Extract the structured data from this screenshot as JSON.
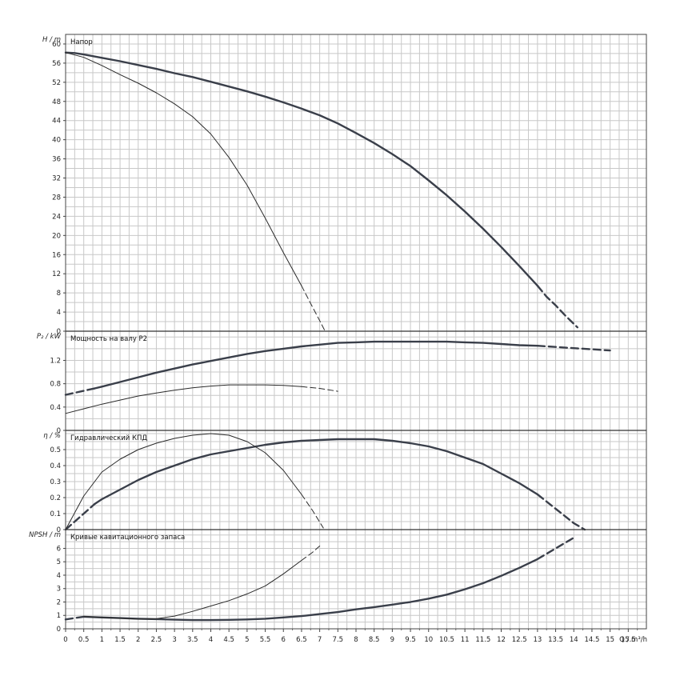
{
  "chart_data": {
    "type": "line",
    "x_axis": {
      "label": "Q / m³/h",
      "range": [
        0,
        16
      ],
      "ticks": [
        "0",
        "0.5",
        "1",
        "1.5",
        "2",
        "2.5",
        "3",
        "3.5",
        "4",
        "4.5",
        "5",
        "5.5",
        "6",
        "6.5",
        "7",
        "7.5",
        "8",
        "8.5",
        "9",
        "9.5",
        "10",
        "10.5",
        "11",
        "11.5",
        "12",
        "12.5",
        "13",
        "13.5",
        "14",
        "14.5",
        "15",
        "15.5"
      ],
      "grid_step": 0.25,
      "grid": true
    },
    "panels": [
      {
        "id": "head",
        "title": "Напор",
        "ylabel": "H / m",
        "ylim": [
          0,
          62
        ],
        "yticks": [
          0,
          4,
          8,
          12,
          16,
          20,
          24,
          28,
          32,
          36,
          40,
          44,
          48,
          52,
          56,
          60
        ],
        "grid_step": 2,
        "series": [
          {
            "style": "thick",
            "x": [
              0,
              0.25,
              0.5,
              1,
              1.5,
              2,
              2.5,
              3,
              3.5,
              4,
              4.5,
              5,
              5.5,
              6,
              6.5,
              7,
              7.5,
              8,
              8.5,
              9,
              9.5,
              10,
              10.5,
              11,
              11.5,
              12,
              12.5,
              13
            ],
            "y": [
              58.2,
              58.1,
              57.8,
              57.1,
              56.4,
              55.6,
              54.8,
              53.9,
              53.1,
              52.1,
              51.1,
              50.1,
              49,
              47.8,
              46.5,
              45.1,
              43.4,
              41.4,
              39.3,
              37,
              34.5,
              31.5,
              28.4,
              25,
              21.4,
              17.6,
              13.6,
              9.5
            ]
          },
          {
            "style": "thick-dashed",
            "x": [
              13,
              13.25,
              13.5,
              13.75,
              14.1
            ],
            "y": [
              9.5,
              7.2,
              5.4,
              3.4,
              0.8
            ]
          },
          {
            "style": "thin",
            "x": [
              0,
              0.5,
              1,
              1.5,
              2,
              2.5,
              3,
              3.5,
              4,
              4.5,
              5,
              5.5,
              6,
              6.5
            ],
            "y": [
              58.2,
              57.2,
              55.5,
              53.6,
              51.8,
              49.8,
              47.5,
              44.8,
              41.2,
              36.3,
              30.5,
              23.6,
              16.4,
              9.5
            ]
          },
          {
            "style": "thin-dashed",
            "x": [
              6.5,
              6.75,
              7,
              7.15
            ],
            "y": [
              9.5,
              5.8,
              2.2,
              0
            ]
          }
        ]
      },
      {
        "id": "power",
        "title": "Мощность на валу P2",
        "ylabel": "P₂ / kW",
        "ylim": [
          0,
          1.7
        ],
        "yticks": [
          "0",
          "0.4",
          "0.8",
          "1.2"
        ],
        "ytick_values": [
          0,
          0.4,
          0.8,
          1.2
        ],
        "grid_step": 0.2,
        "series": [
          {
            "style": "thick-dashed",
            "x": [
              0,
              0.8
            ],
            "y": [
              0.61,
              0.72
            ]
          },
          {
            "style": "thick",
            "x": [
              0.8,
              1,
              1.5,
              2,
              2.5,
              3,
              3.5,
              4,
              4.5,
              5,
              5.5,
              6,
              6.5,
              7,
              7.5,
              8,
              8.5,
              9,
              9.5,
              10,
              10.5,
              11,
              11.5,
              12,
              12.5,
              13
            ],
            "y": [
              0.72,
              0.75,
              0.83,
              0.91,
              0.99,
              1.06,
              1.13,
              1.19,
              1.25,
              1.31,
              1.36,
              1.4,
              1.44,
              1.47,
              1.5,
              1.51,
              1.52,
              1.52,
              1.52,
              1.52,
              1.52,
              1.51,
              1.5,
              1.48,
              1.46,
              1.45
            ]
          },
          {
            "style": "thick-dashed",
            "x": [
              13,
              13.5,
              14,
              14.5,
              15
            ],
            "y": [
              1.45,
              1.43,
              1.41,
              1.39,
              1.37
            ]
          },
          {
            "style": "thin",
            "x": [
              0,
              0.5,
              1,
              1.5,
              2,
              2.5,
              3,
              3.5,
              4,
              4.5,
              5,
              5.5,
              6,
              6.5
            ],
            "y": [
              0.29,
              0.37,
              0.45,
              0.52,
              0.59,
              0.64,
              0.69,
              0.73,
              0.76,
              0.78,
              0.78,
              0.78,
              0.77,
              0.75
            ]
          },
          {
            "style": "thin-dashed",
            "x": [
              6.5,
              7,
              7.5
            ],
            "y": [
              0.75,
              0.72,
              0.67
            ]
          }
        ]
      },
      {
        "id": "efficiency",
        "title": "Гидравлический КПД",
        "ylabel": "η / %",
        "ylim": [
          0,
          0.62
        ],
        "yticks": [
          "0",
          "0.1",
          "0.2",
          "0.3",
          "0.4",
          "0.5"
        ],
        "ytick_values": [
          0,
          0.1,
          0.2,
          0.3,
          0.4,
          0.5
        ],
        "grid_step": 0.05,
        "series": [
          {
            "style": "thick-dashed",
            "x": [
              0,
              0.4,
              0.8
            ],
            "y": [
              0,
              0.08,
              0.16
            ]
          },
          {
            "style": "thick",
            "x": [
              0.8,
              1,
              1.5,
              2,
              2.5,
              3,
              3.5,
              4,
              4.5,
              5,
              5.5,
              6,
              6.5,
              7,
              7.5,
              8,
              8.5,
              9,
              9.5,
              10,
              10.5,
              11,
              11.5,
              12,
              12.5,
              13
            ],
            "y": [
              0.16,
              0.19,
              0.25,
              0.31,
              0.36,
              0.4,
              0.44,
              0.47,
              0.49,
              0.51,
              0.53,
              0.545,
              0.555,
              0.56,
              0.565,
              0.565,
              0.565,
              0.555,
              0.54,
              0.52,
              0.49,
              0.45,
              0.41,
              0.35,
              0.29,
              0.22
            ]
          },
          {
            "style": "thick-dashed",
            "x": [
              13,
              13.5,
              14,
              14.3
            ],
            "y": [
              0.22,
              0.13,
              0.04,
              0
            ]
          },
          {
            "style": "thin",
            "x": [
              0,
              0.5,
              1,
              1.5,
              2,
              2.5,
              3,
              3.5,
              4,
              4.5,
              5,
              5.5,
              6,
              6.5
            ],
            "y": [
              0,
              0.21,
              0.36,
              0.44,
              0.5,
              0.54,
              0.57,
              0.59,
              0.6,
              0.59,
              0.55,
              0.48,
              0.37,
              0.22
            ]
          },
          {
            "style": "thin-dashed",
            "x": [
              6.5,
              6.8,
              7.1
            ],
            "y": [
              0.22,
              0.12,
              0.01
            ]
          }
        ]
      },
      {
        "id": "npsh",
        "title": "Кривые кавитационного запаса",
        "ylabel": "NPSH / m",
        "ylim": [
          0,
          7.4
        ],
        "yticks": [
          "0",
          "1",
          "2",
          "3",
          "4",
          "5",
          "6"
        ],
        "ytick_values": [
          0,
          1,
          2,
          3,
          4,
          5,
          6
        ],
        "grid_step": 0.5,
        "series": [
          {
            "style": "thick-dashed",
            "x": [
              0,
              0.5
            ],
            "y": [
              0.7,
              0.9
            ]
          },
          {
            "style": "thick",
            "x": [
              0.5,
              1,
              1.5,
              2,
              2.5,
              3,
              3.5,
              4,
              4.5,
              5,
              5.5,
              6,
              6.5,
              7,
              7.5,
              8,
              8.5,
              9,
              9.5,
              10,
              10.5,
              11,
              11.5,
              12,
              12.5,
              13
            ],
            "y": [
              0.9,
              0.85,
              0.8,
              0.75,
              0.72,
              0.68,
              0.65,
              0.65,
              0.67,
              0.7,
              0.75,
              0.85,
              0.95,
              1.1,
              1.25,
              1.45,
              1.62,
              1.8,
              2,
              2.25,
              2.55,
              2.95,
              3.4,
              3.95,
              4.55,
              5.2
            ]
          },
          {
            "style": "thick-dashed",
            "x": [
              13,
              13.5,
              14
            ],
            "y": [
              5.2,
              6,
              6.8
            ]
          },
          {
            "style": "thin",
            "x": [
              0.5,
              1,
              1.5,
              2,
              2.5,
              3,
              3.5,
              4,
              4.5,
              5,
              5.5,
              6,
              6.5
            ],
            "y": [
              0.92,
              0.85,
              0.78,
              0.72,
              0.75,
              0.95,
              1.3,
              1.7,
              2.1,
              2.6,
              3.2,
              4.1,
              5.1
            ]
          },
          {
            "style": "thin-dashed",
            "x": [
              6.5,
              6.8,
              7.05
            ],
            "y": [
              5.1,
              5.7,
              6.3
            ]
          }
        ]
      }
    ]
  }
}
